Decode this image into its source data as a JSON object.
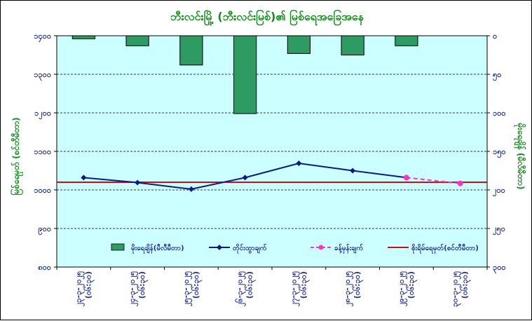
{
  "chart_data": {
    "type": "bar+line",
    "title": "ဘီးလင်းမြို့ (ဘီးလင်းမြစ်)၏ မြစ်ရေအခြေအနေ",
    "categories": [
      "၂၃-၃-၂၀၂၅\n(၀၆:၃၀)",
      "၂၄-၃-၂၀၂၅\n(၀၆:၃၀)",
      "၂၅-၃-၂၀၂၅\n(၀၆:၃၀)",
      "၂၆-၃-၂၀၂၅\n(၀၆:၃၀)",
      "၂၇-၃-၂၀၂၅\n(၀၆:၃၀)",
      "၂၈-၃-၂၀၂၅\n(၀၆:၃၀)",
      "၂၉-၃-၂၀၂၅\n(၀၆:၃၀)",
      "၃၀-၃-၂၀၂၅\n(၀၆:၃၀)"
    ],
    "left_axis": {
      "label": "မြစ်ရေမှတ် (စင်တီမီတာ)",
      "min": 800,
      "max": 1400,
      "step": 100,
      "ticks": [
        "၈၀၀",
        "၉၀၀",
        "၁၀၀၀",
        "၁၁၀၀",
        "၁၂၀၀",
        "၁၃၀၀",
        "၁၄၀၀"
      ]
    },
    "right_axis": {
      "label": "မိုးရေချိန် (မီလီမီတာ)",
      "min": 0,
      "max": 300,
      "step": 50,
      "reversed": true,
      "ticks": [
        "၀",
        "၅၀",
        "၁၀၀",
        "၁၅၀",
        "၂၀၀",
        "၂၅၀",
        "၃၀၀"
      ]
    },
    "series": [
      {
        "name": "မိုးရေချိန်(မီလီမီတာ)",
        "kind": "bar",
        "axis": "right",
        "color": "#2e9b63",
        "values": [
          4,
          13,
          38,
          101,
          23,
          25,
          13,
          null
        ]
      },
      {
        "name": "တိုင်းထွာချက်",
        "kind": "line",
        "axis": "left",
        "color": "#0a1a8c",
        "values": [
          1032,
          1019,
          1002,
          1032,
          1069,
          1050,
          1032,
          null
        ]
      },
      {
        "name": "ခန့်မှန်းချက်",
        "kind": "dashed-line",
        "axis": "left",
        "color": "#ff33cc",
        "values": [
          null,
          null,
          null,
          null,
          null,
          null,
          1032,
          1017
        ]
      },
      {
        "name": "စိုးရိမ်ရေမှတ်(စင်တီမီတာ)",
        "kind": "hline",
        "axis": "left",
        "color": "#cc1010",
        "value": 1020
      }
    ],
    "grid": "horizontal-dashed",
    "legend_position": "bottom-inside",
    "background": "#ccffff"
  }
}
